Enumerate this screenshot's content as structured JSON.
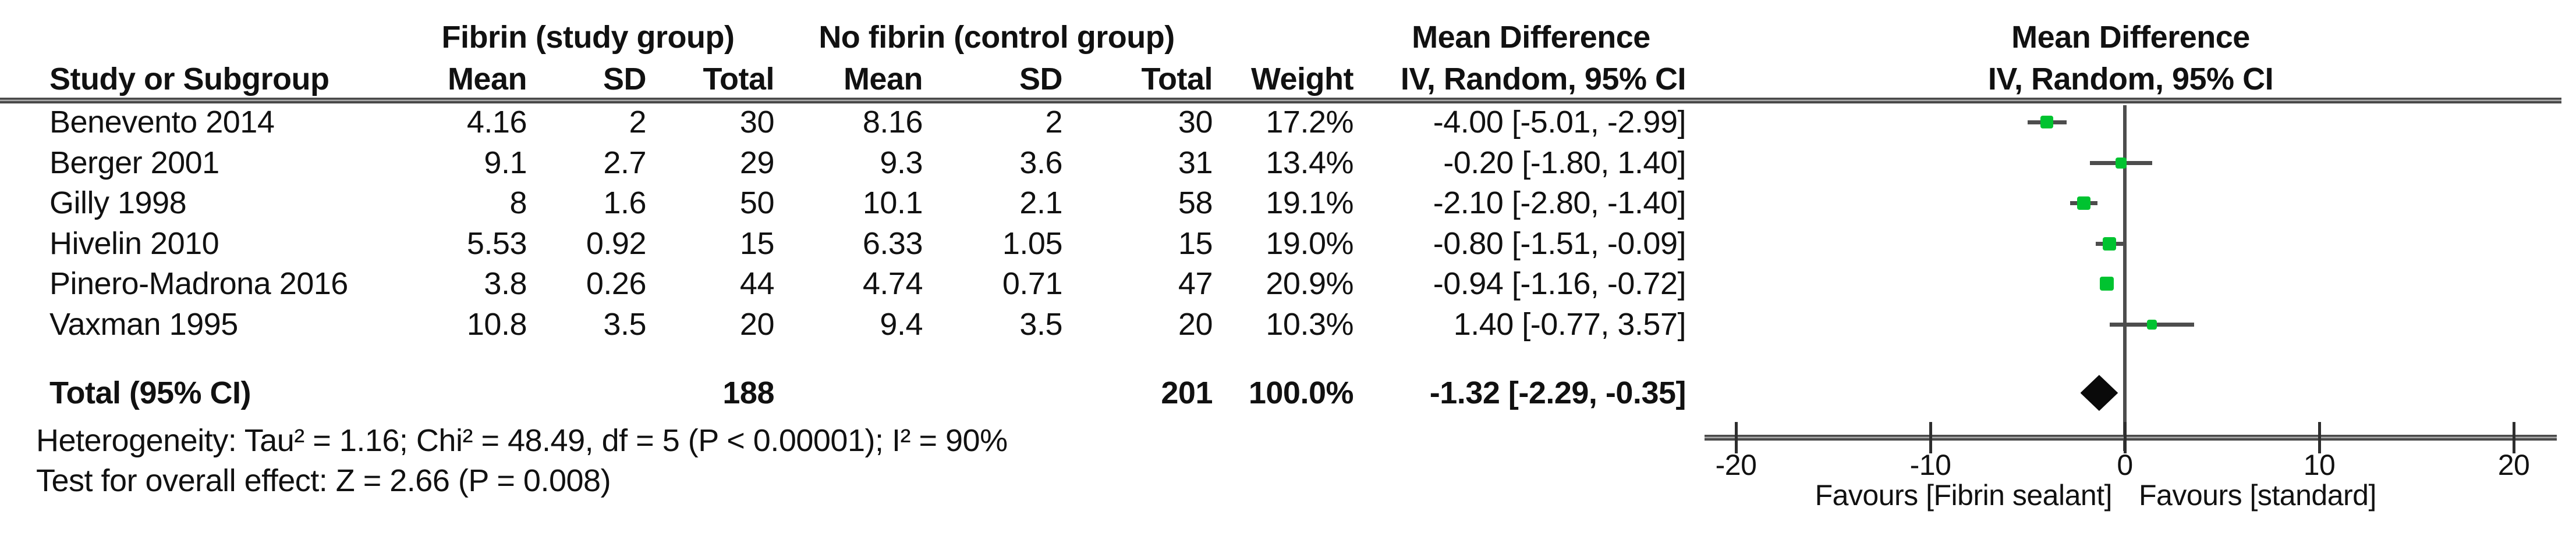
{
  "header": {
    "group1": "Fibrin (study group)",
    "group2": "No fibrin (control group)",
    "mean_difference": "Mean Difference",
    "method": "IV, Random, 95% CI",
    "col_study": "Study or Subgroup",
    "col_mean": "Mean",
    "col_sd": "SD",
    "col_total": "Total",
    "col_weight": "Weight"
  },
  "rows": [
    {
      "study": "Benevento 2014",
      "mean1": "4.16",
      "sd1": "2",
      "total1": "30",
      "mean2": "8.16",
      "sd2": "2",
      "total2": "30",
      "weight": "17.2%",
      "ci": "-4.00 [-5.01, -2.99]"
    },
    {
      "study": "Berger 2001",
      "mean1": "9.1",
      "sd1": "2.7",
      "total1": "29",
      "mean2": "9.3",
      "sd2": "3.6",
      "total2": "31",
      "weight": "13.4%",
      "ci": "-0.20 [-1.80, 1.40]"
    },
    {
      "study": "Gilly 1998",
      "mean1": "8",
      "sd1": "1.6",
      "total1": "50",
      "mean2": "10.1",
      "sd2": "2.1",
      "total2": "58",
      "weight": "19.1%",
      "ci": "-2.10 [-2.80, -1.40]"
    },
    {
      "study": "Hivelin 2010",
      "mean1": "5.53",
      "sd1": "0.92",
      "total1": "15",
      "mean2": "6.33",
      "sd2": "1.05",
      "total2": "15",
      "weight": "19.0%",
      "ci": "-0.80 [-1.51, -0.09]"
    },
    {
      "study": "Pinero-Madrona 2016",
      "mean1": "3.8",
      "sd1": "0.26",
      "total1": "44",
      "mean2": "4.74",
      "sd2": "0.71",
      "total2": "47",
      "weight": "20.9%",
      "ci": "-0.94 [-1.16, -0.72]"
    },
    {
      "study": "Vaxman 1995",
      "mean1": "10.8",
      "sd1": "3.5",
      "total1": "20",
      "mean2": "9.4",
      "sd2": "3.5",
      "total2": "20",
      "weight": "10.3%",
      "ci": "1.40 [-0.77, 3.57]"
    }
  ],
  "total_row": {
    "label": "Total (95% CI)",
    "total1": "188",
    "total2": "201",
    "weight": "100.0%",
    "ci": "-1.32 [-2.29, -0.35]"
  },
  "footnotes": {
    "heterogeneity": "Heterogeneity: Tau² = 1.16; Chi² = 48.49, df = 5 (P < 0.00001); I² = 90%",
    "overall_effect": "Test for overall effect: Z = 2.66 (P = 0.008)"
  },
  "axis_labels": {
    "favours_left": "Favours [Fibrin sealant]",
    "favours_right": "Favours [standard]"
  },
  "colors": {
    "marker_green": "#00C330",
    "ci_line_gray": "#4d4d4d",
    "diamond_black": "#0a0a0a"
  },
  "chart_data": {
    "type": "forest",
    "title": "",
    "effect_measure": "Mean Difference, IV, Random, 95% CI",
    "group1_label": "Fibrin (study group)",
    "group2_label": "No fibrin (control group)",
    "studies": [
      {
        "name": "Benevento 2014",
        "mean1": 4.16,
        "sd1": 2,
        "n1": 30,
        "mean2": 8.16,
        "sd2": 2,
        "n2": 30,
        "weight_pct": 17.2,
        "md": -4.0,
        "ci_low": -5.01,
        "ci_high": -2.99
      },
      {
        "name": "Berger 2001",
        "mean1": 9.1,
        "sd1": 2.7,
        "n1": 29,
        "mean2": 9.3,
        "sd2": 3.6,
        "n2": 31,
        "weight_pct": 13.4,
        "md": -0.2,
        "ci_low": -1.8,
        "ci_high": 1.4
      },
      {
        "name": "Gilly 1998",
        "mean1": 8,
        "sd1": 1.6,
        "n1": 50,
        "mean2": 10.1,
        "sd2": 2.1,
        "n2": 58,
        "weight_pct": 19.1,
        "md": -2.1,
        "ci_low": -2.8,
        "ci_high": -1.4
      },
      {
        "name": "Hivelin 2010",
        "mean1": 5.53,
        "sd1": 0.92,
        "n1": 15,
        "mean2": 6.33,
        "sd2": 1.05,
        "n2": 15,
        "weight_pct": 19.0,
        "md": -0.8,
        "ci_low": -1.51,
        "ci_high": -0.09
      },
      {
        "name": "Pinero-Madrona 2016",
        "mean1": 3.8,
        "sd1": 0.26,
        "n1": 44,
        "mean2": 4.74,
        "sd2": 0.71,
        "n2": 47,
        "weight_pct": 20.9,
        "md": -0.94,
        "ci_low": -1.16,
        "ci_high": -0.72
      },
      {
        "name": "Vaxman 1995",
        "mean1": 10.8,
        "sd1": 3.5,
        "n1": 20,
        "mean2": 9.4,
        "sd2": 3.5,
        "n2": 20,
        "weight_pct": 10.3,
        "md": 1.4,
        "ci_low": -0.77,
        "ci_high": 3.57
      }
    ],
    "total": {
      "n1": 188,
      "n2": 201,
      "weight_pct": 100.0,
      "md": -1.32,
      "ci_low": -2.29,
      "ci_high": -0.35
    },
    "heterogeneity": {
      "tau2": 1.16,
      "chi2": 48.49,
      "df": 5,
      "p": "< 0.00001",
      "i2_pct": 90
    },
    "overall_effect": {
      "z": 2.66,
      "p": 0.008
    },
    "axis": {
      "ticks": [
        -20,
        -10,
        0,
        10,
        20
      ],
      "tick_labels": [
        "-20",
        "-10",
        "0",
        "10",
        "20"
      ],
      "xlim": [
        -21.8,
        22.2
      ],
      "zero_line": true,
      "favours_left": "Favours [Fibrin sealant]",
      "favours_right": "Favours [standard]"
    }
  }
}
